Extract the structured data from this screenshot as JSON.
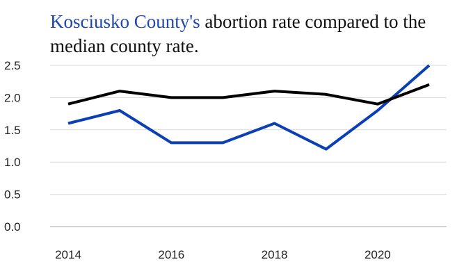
{
  "title": {
    "highlight": "Kosciusko County's",
    "rest": " abortion rate compared to the median county rate."
  },
  "colors": {
    "highlight": "#1f47b0",
    "county_line": "#0a3fb5",
    "median_line": "#000000",
    "grid": "#d9d9d9"
  },
  "chart_data": {
    "type": "line",
    "title": "Kosciusko County's abortion rate compared to the median county rate.",
    "x": [
      2014,
      2015,
      2016,
      2017,
      2018,
      2019,
      2020,
      2021
    ],
    "x_ticks": [
      "2014",
      "2016",
      "2018",
      "2020"
    ],
    "y_ticks": [
      "0.0",
      "0.5",
      "1.0",
      "1.5",
      "2.0",
      "2.5"
    ],
    "ylim": [
      0,
      2.5
    ],
    "xlim": [
      2014,
      2021
    ],
    "grid": true,
    "series": [
      {
        "values": [
          1.6,
          1.8,
          1.3,
          1.3,
          1.6,
          1.2,
          1.8,
          2.5
        ],
        "color": "#0a3fb5"
      },
      {
        "values": [
          1.9,
          2.1,
          2.0,
          2.0,
          2.1,
          2.05,
          1.9,
          2.2
        ],
        "color": "#000000"
      }
    ]
  }
}
